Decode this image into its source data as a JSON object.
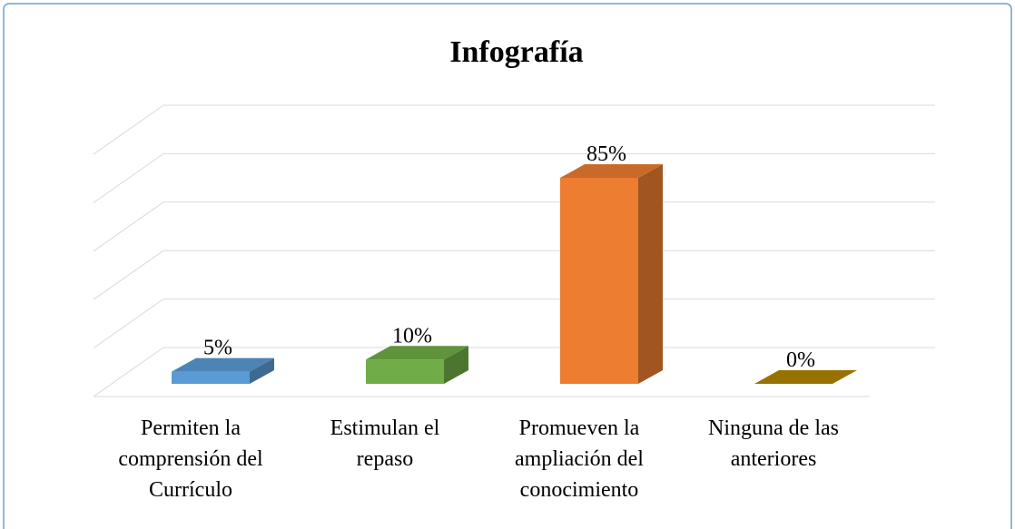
{
  "chart_data": {
    "type": "bar3d",
    "title": "Infografía",
    "categories": [
      "Permiten la comprensión del Currículo",
      "Estimulan el repaso",
      "Promueven la ampliación del conocimiento",
      "Ninguna de las anteriores"
    ],
    "values": [
      5,
      10,
      85,
      0
    ],
    "value_labels": [
      "5%",
      "10%",
      "85%",
      "0%"
    ],
    "colors": [
      "#5b9bd5",
      "#70ad47",
      "#ed7d31",
      "#b38600"
    ],
    "ylim": [
      0,
      100
    ],
    "yticks": [
      0,
      20,
      40,
      60,
      80,
      100
    ],
    "grid": true
  }
}
